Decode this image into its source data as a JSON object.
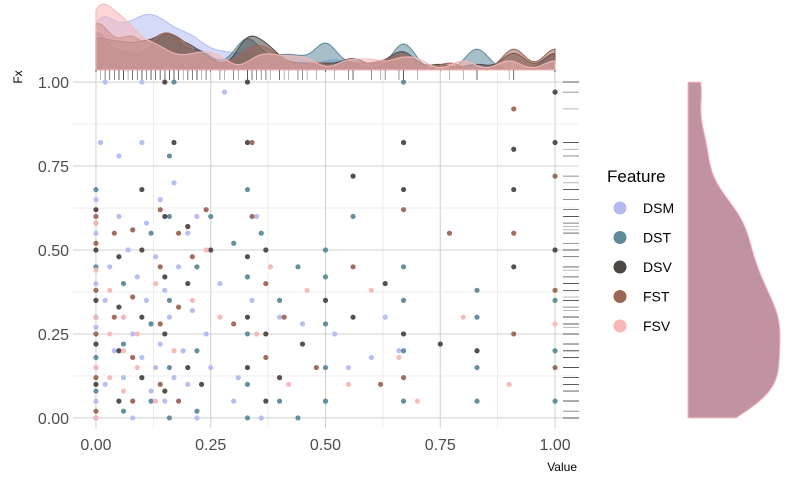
{
  "chart_data": {
    "type": "scatter",
    "xlabel": "Value",
    "ylabel": "Fx",
    "xlim": [
      -0.05,
      1.05
    ],
    "ylim": [
      -0.03,
      1.03
    ],
    "x_ticks": [
      0.0,
      0.25,
      0.5,
      0.75,
      1.0
    ],
    "x_tick_labels": [
      "0.00",
      "0.25",
      "0.50",
      "0.75",
      "1.00"
    ],
    "y_ticks": [
      0.0,
      0.25,
      0.5,
      0.75,
      1.0
    ],
    "y_tick_labels": [
      "0.00",
      "0.25",
      "0.50",
      "0.75",
      "1.00"
    ],
    "grid": true,
    "legend": {
      "title": "Feature",
      "placement": "right"
    },
    "marginals": {
      "top": "density",
      "right": "density",
      "top_rug": true,
      "right_rug": true
    },
    "series": [
      {
        "name": "DSM",
        "color": "#b3bbf2",
        "points": [
          [
            0.0,
            0.05
          ],
          [
            0.0,
            0.15
          ],
          [
            0.0,
            0.27
          ],
          [
            0.0,
            0.4
          ],
          [
            0.0,
            0.55
          ],
          [
            0.0,
            0.65
          ],
          [
            0.01,
            0.82
          ],
          [
            0.02,
            0.1
          ],
          [
            0.02,
            0.35
          ],
          [
            0.03,
            0.45
          ],
          [
            0.04,
            0.2
          ],
          [
            0.05,
            0.6
          ],
          [
            0.05,
            0.78
          ],
          [
            0.06,
            0.12
          ],
          [
            0.06,
            0.3
          ],
          [
            0.07,
            0.5
          ],
          [
            0.08,
            0.0
          ],
          [
            0.08,
            0.25
          ],
          [
            0.09,
            0.42
          ],
          [
            0.1,
            0.18
          ],
          [
            0.1,
            0.82
          ],
          [
            0.11,
            0.35
          ],
          [
            0.11,
            0.58
          ],
          [
            0.12,
            0.08
          ],
          [
            0.12,
            0.28
          ],
          [
            0.13,
            0.15
          ],
          [
            0.13,
            0.48
          ],
          [
            0.14,
            0.22
          ],
          [
            0.14,
            0.65
          ],
          [
            0.15,
            0.05
          ],
          [
            0.15,
            0.38
          ],
          [
            0.16,
            0.3
          ],
          [
            0.17,
            0.12
          ],
          [
            0.17,
            0.7
          ],
          [
            0.18,
            0.45
          ],
          [
            0.19,
            0.2
          ],
          [
            0.2,
            0.1
          ],
          [
            0.2,
            0.55
          ],
          [
            0.21,
            0.32
          ],
          [
            0.22,
            0.0
          ],
          [
            0.22,
            0.6
          ],
          [
            0.24,
            0.25
          ],
          [
            0.25,
            0.15
          ],
          [
            0.27,
            0.4
          ],
          [
            0.28,
            0.97
          ],
          [
            0.3,
            0.05
          ],
          [
            0.31,
            0.12
          ],
          [
            0.34,
            0.35
          ],
          [
            0.35,
            0.6
          ],
          [
            0.36,
            0.0
          ],
          [
            0.4,
            0.3
          ],
          [
            0.45,
            0.28
          ],
          [
            0.5,
            0.05
          ],
          [
            0.52,
            0.25
          ],
          [
            0.55,
            0.15
          ],
          [
            0.6,
            0.18
          ],
          [
            0.63,
            0.3
          ],
          [
            0.66,
            0.2
          ],
          [
            0.02,
            1.0
          ],
          [
            0.1,
            1.0
          ]
        ]
      },
      {
        "name": "DST",
        "color": "#5e8a9a",
        "points": [
          [
            0.0,
            0.0
          ],
          [
            0.0,
            0.08
          ],
          [
            0.0,
            0.18
          ],
          [
            0.0,
            0.3
          ],
          [
            0.0,
            0.45
          ],
          [
            0.0,
            0.58
          ],
          [
            0.0,
            0.68
          ],
          [
            0.06,
            0.02
          ],
          [
            0.06,
            0.22
          ],
          [
            0.06,
            0.4
          ],
          [
            0.12,
            0.05
          ],
          [
            0.12,
            0.28
          ],
          [
            0.12,
            0.55
          ],
          [
            0.16,
            0.0
          ],
          [
            0.16,
            0.15
          ],
          [
            0.16,
            0.35
          ],
          [
            0.16,
            0.6
          ],
          [
            0.16,
            0.78
          ],
          [
            0.22,
            0.02
          ],
          [
            0.22,
            0.2
          ],
          [
            0.22,
            0.45
          ],
          [
            0.25,
            0.6
          ],
          [
            0.3,
            0.52
          ],
          [
            0.33,
            0.0
          ],
          [
            0.33,
            0.1
          ],
          [
            0.33,
            0.25
          ],
          [
            0.33,
            0.42
          ],
          [
            0.33,
            0.68
          ],
          [
            0.36,
            0.55
          ],
          [
            0.4,
            0.05
          ],
          [
            0.4,
            0.35
          ],
          [
            0.44,
            0.45
          ],
          [
            0.44,
            0.0
          ],
          [
            0.5,
            0.05
          ],
          [
            0.5,
            0.15
          ],
          [
            0.5,
            0.28
          ],
          [
            0.5,
            0.42
          ],
          [
            0.5,
            0.5
          ],
          [
            0.56,
            0.6
          ],
          [
            0.67,
            0.05
          ],
          [
            0.67,
            0.2
          ],
          [
            0.67,
            0.35
          ],
          [
            0.67,
            0.45
          ],
          [
            0.67,
            1.0
          ],
          [
            0.83,
            0.05
          ],
          [
            0.83,
            0.15
          ],
          [
            0.83,
            0.3
          ],
          [
            0.83,
            0.38
          ],
          [
            1.0,
            0.05
          ],
          [
            1.0,
            0.2
          ],
          [
            1.0,
            0.35
          ],
          [
            0.17,
            1.0
          ]
        ]
      },
      {
        "name": "DSV",
        "color": "#4e4545",
        "points": [
          [
            0.0,
            0.1
          ],
          [
            0.0,
            0.22
          ],
          [
            0.0,
            0.35
          ],
          [
            0.0,
            0.5
          ],
          [
            0.0,
            0.62
          ],
          [
            0.05,
            0.05
          ],
          [
            0.05,
            0.2
          ],
          [
            0.05,
            0.33
          ],
          [
            0.05,
            0.48
          ],
          [
            0.1,
            0.12
          ],
          [
            0.1,
            0.3
          ],
          [
            0.1,
            0.5
          ],
          [
            0.1,
            0.68
          ],
          [
            0.15,
            0.08
          ],
          [
            0.15,
            0.25
          ],
          [
            0.15,
            0.42
          ],
          [
            0.15,
            0.6
          ],
          [
            0.17,
            0.82
          ],
          [
            0.2,
            0.15
          ],
          [
            0.2,
            0.4
          ],
          [
            0.2,
            0.57
          ],
          [
            0.23,
            0.1
          ],
          [
            0.25,
            0.5
          ],
          [
            0.33,
            0.15
          ],
          [
            0.33,
            0.3
          ],
          [
            0.33,
            0.48
          ],
          [
            0.33,
            0.82
          ],
          [
            0.37,
            0.05
          ],
          [
            0.37,
            0.25
          ],
          [
            0.37,
            0.5
          ],
          [
            0.4,
            0.12
          ],
          [
            0.45,
            0.22
          ],
          [
            0.5,
            0.35
          ],
          [
            0.56,
            0.3
          ],
          [
            0.56,
            0.72
          ],
          [
            0.63,
            0.4
          ],
          [
            0.67,
            0.25
          ],
          [
            0.67,
            0.68
          ],
          [
            0.67,
            0.82
          ],
          [
            0.75,
            0.22
          ],
          [
            0.83,
            0.2
          ],
          [
            0.91,
            0.68
          ],
          [
            0.91,
            0.8
          ],
          [
            0.91,
            0.45
          ],
          [
            1.0,
            0.82
          ],
          [
            1.0,
            0.5
          ],
          [
            1.0,
            0.97
          ],
          [
            0.15,
            1.0
          ],
          [
            0.33,
            1.0
          ]
        ]
      },
      {
        "name": "FST",
        "color": "#9c6655",
        "points": [
          [
            0.0,
            0.02
          ],
          [
            0.0,
            0.12
          ],
          [
            0.0,
            0.25
          ],
          [
            0.0,
            0.38
          ],
          [
            0.0,
            0.52
          ],
          [
            0.0,
            0.6
          ],
          [
            0.04,
            0.3
          ],
          [
            0.04,
            0.55
          ],
          [
            0.08,
            0.05
          ],
          [
            0.08,
            0.18
          ],
          [
            0.08,
            0.36
          ],
          [
            0.08,
            0.56
          ],
          [
            0.14,
            0.1
          ],
          [
            0.14,
            0.28
          ],
          [
            0.14,
            0.45
          ],
          [
            0.14,
            0.62
          ],
          [
            0.18,
            0.05
          ],
          [
            0.18,
            0.33
          ],
          [
            0.18,
            0.55
          ],
          [
            0.21,
            0.48
          ],
          [
            0.24,
            0.62
          ],
          [
            0.3,
            0.28
          ],
          [
            0.34,
            0.6
          ],
          [
            0.34,
            0.82
          ],
          [
            0.37,
            0.18
          ],
          [
            0.37,
            0.4
          ],
          [
            0.41,
            0.3
          ],
          [
            0.48,
            0.15
          ],
          [
            0.56,
            0.45
          ],
          [
            0.62,
            0.1
          ],
          [
            0.67,
            0.12
          ],
          [
            0.67,
            0.62
          ],
          [
            0.77,
            0.55
          ],
          [
            0.91,
            0.25
          ],
          [
            0.91,
            0.55
          ],
          [
            0.91,
            0.92
          ],
          [
            1.0,
            0.15
          ],
          [
            1.0,
            0.72
          ],
          [
            1.0,
            0.38
          ]
        ]
      },
      {
        "name": "FSV",
        "color": "#f7b7b7",
        "points": [
          [
            0.0,
            0.0
          ],
          [
            0.0,
            0.15
          ],
          [
            0.0,
            0.3
          ],
          [
            0.0,
            0.44
          ],
          [
            0.0,
            0.58
          ],
          [
            0.03,
            0.12
          ],
          [
            0.03,
            0.25
          ],
          [
            0.03,
            0.38
          ],
          [
            0.06,
            0.08
          ],
          [
            0.06,
            0.2
          ],
          [
            0.06,
            0.3
          ],
          [
            0.09,
            0.15
          ],
          [
            0.09,
            0.25
          ],
          [
            0.13,
            0.4
          ],
          [
            0.13,
            0.05
          ],
          [
            0.17,
            0.2
          ],
          [
            0.21,
            0.35
          ],
          [
            0.24,
            0.5
          ],
          [
            0.27,
            0.3
          ],
          [
            0.35,
            0.25
          ],
          [
            0.38,
            0.45
          ],
          [
            0.42,
            0.1
          ],
          [
            0.46,
            0.38
          ],
          [
            0.55,
            0.1
          ],
          [
            0.6,
            0.38
          ],
          [
            0.66,
            0.18
          ],
          [
            0.7,
            0.05
          ],
          [
            0.8,
            0.3
          ],
          [
            0.9,
            0.1
          ],
          [
            1.0,
            0.28
          ]
        ]
      }
    ]
  }
}
